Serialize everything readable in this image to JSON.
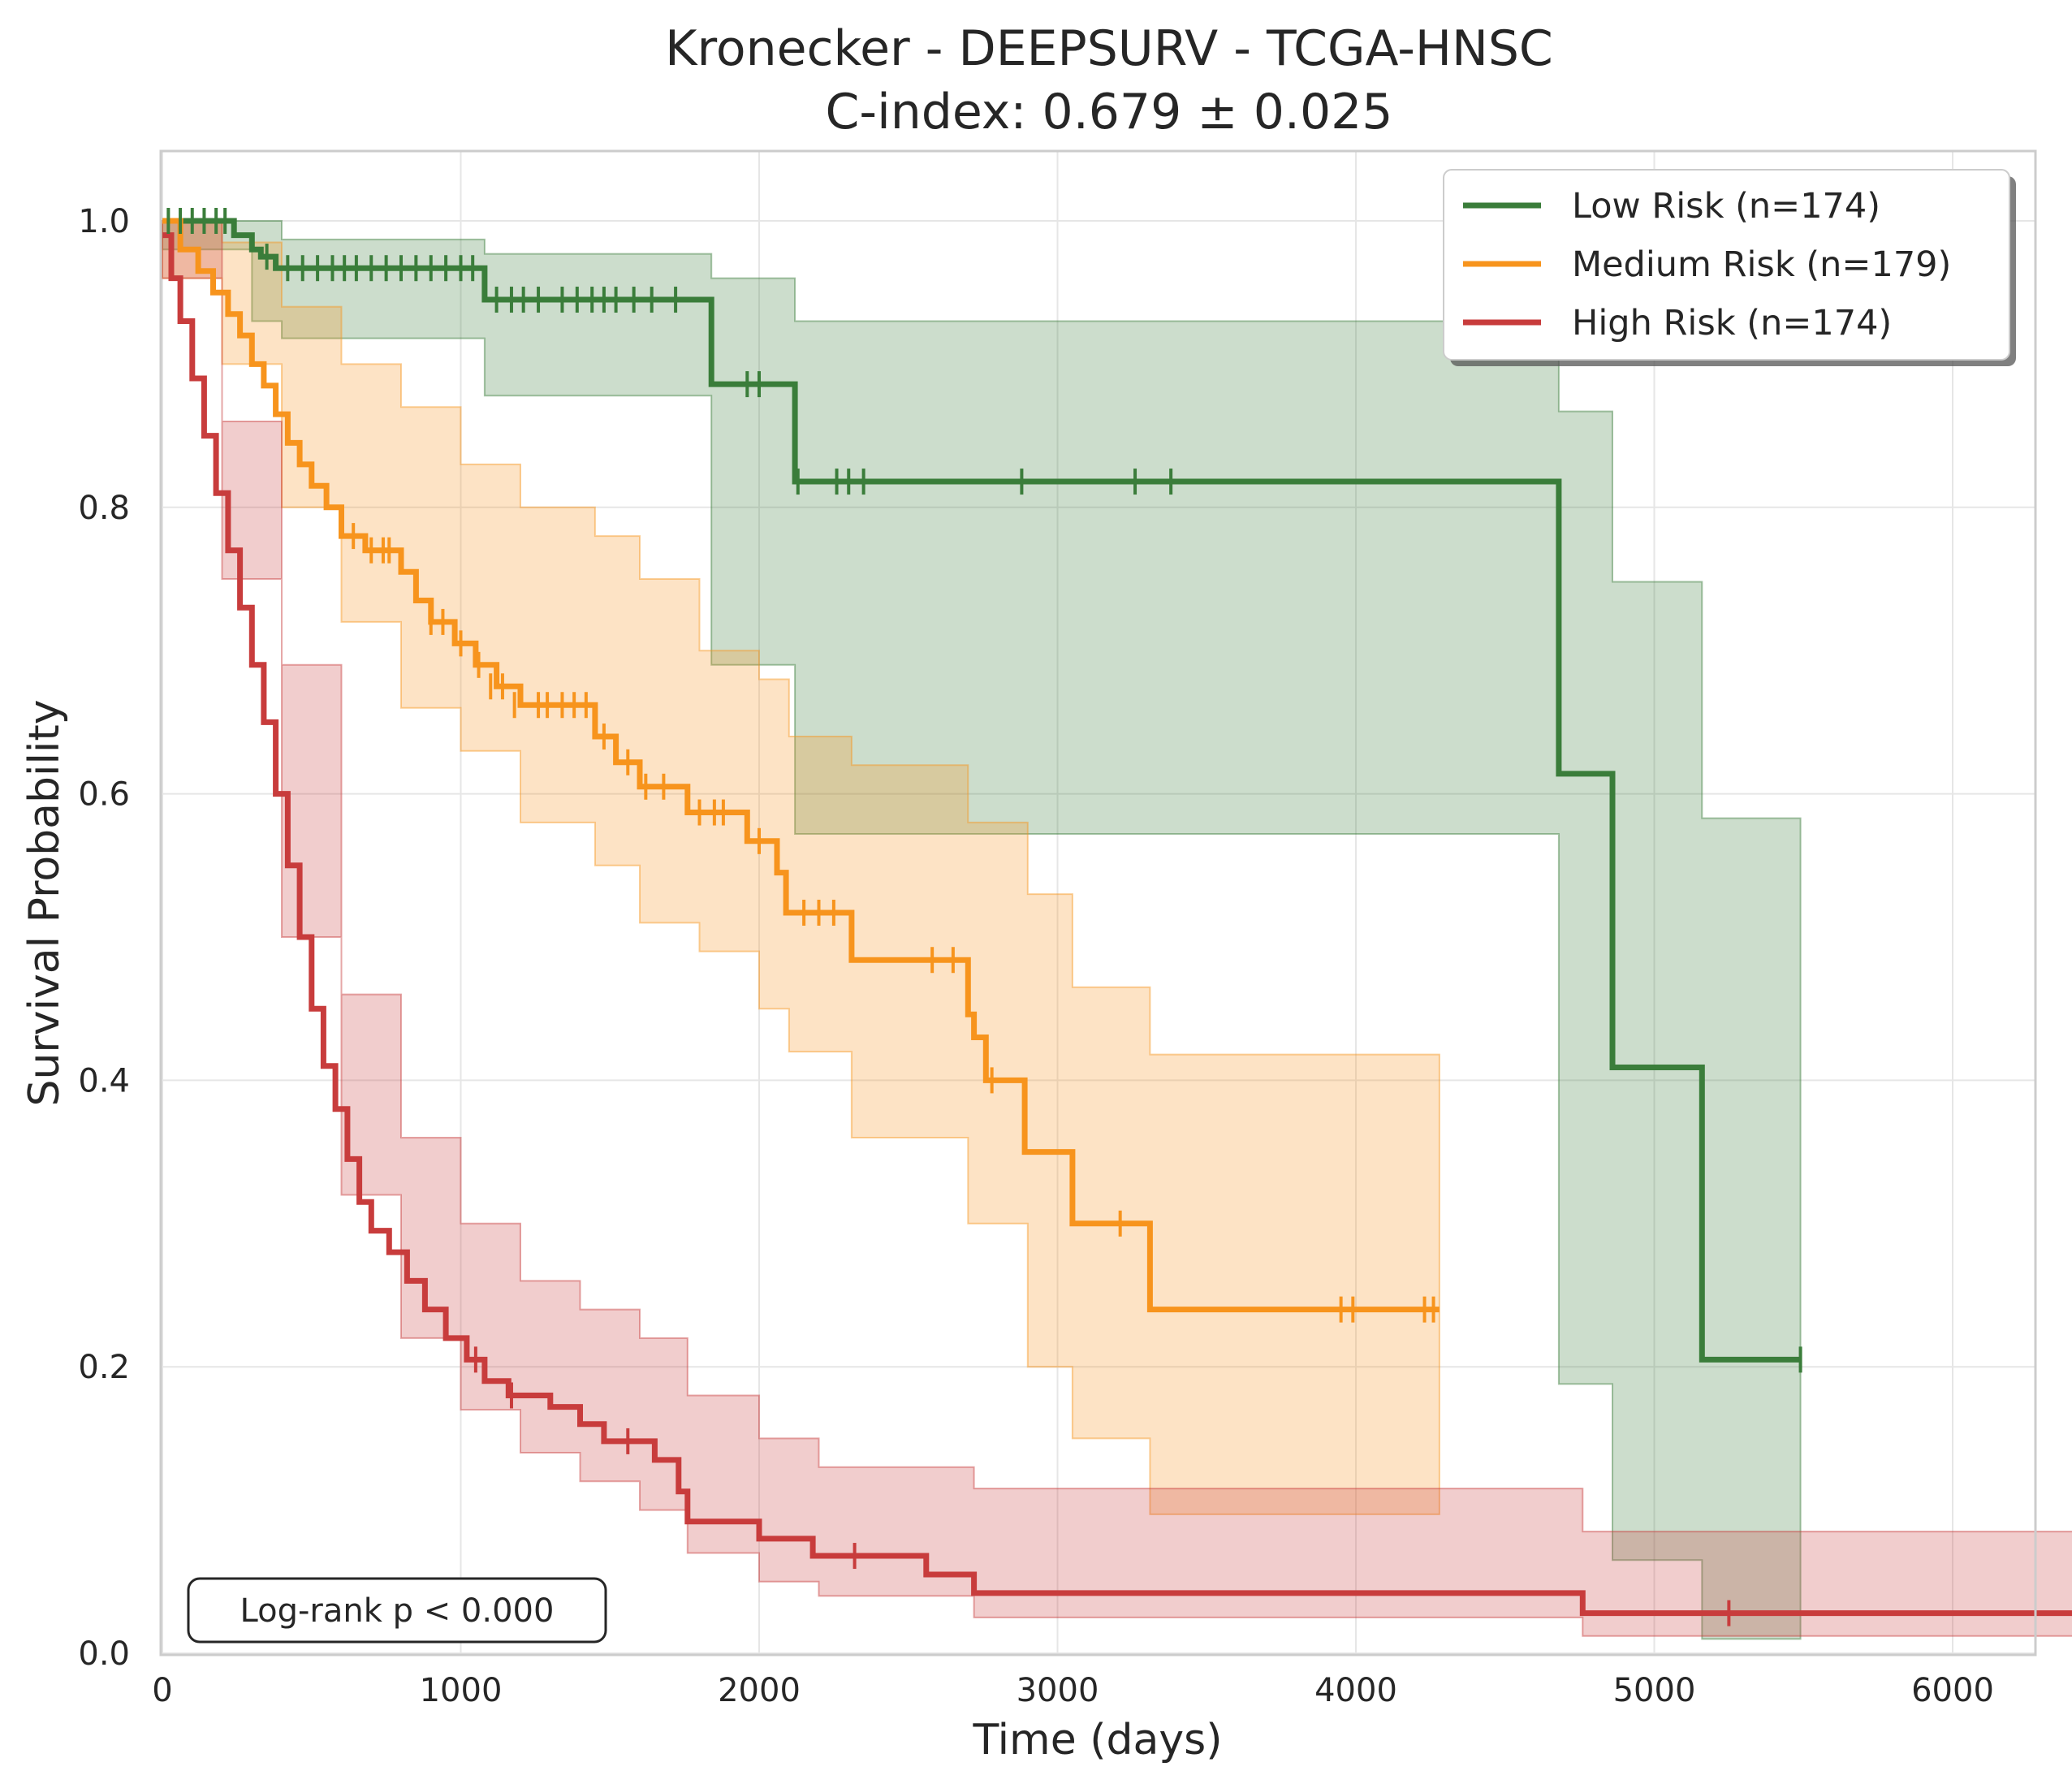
{
  "chart_data": {
    "type": "line",
    "title": "Kronecker - DEEPSURV - TCGA-HNSC",
    "subtitle": "C-index: 0.679 ± 0.025",
    "xlabel": "Time (days)",
    "ylabel": "Survival Probability",
    "xlim": [
      0,
      6700
    ],
    "ylim": [
      0,
      1.05
    ],
    "xticks": [
      "0",
      "1000",
      "2000",
      "3000",
      "4000",
      "5000",
      "6000"
    ],
    "yticks": [
      "0.0",
      "0.2",
      "0.4",
      "0.6",
      "0.8",
      "1.0"
    ],
    "grid": true,
    "legend_position": "top-right",
    "annotation": "Log-rank p < 0.000",
    "series": [
      {
        "name": "Low Risk (n=174)",
        "color": "#3a7d3a",
        "steps": [
          [
            0,
            1.0
          ],
          [
            240,
            0.99
          ],
          [
            300,
            0.98
          ],
          [
            330,
            0.975
          ],
          [
            380,
            0.967
          ],
          [
            1080,
            0.945
          ],
          [
            1840,
            0.886
          ],
          [
            2120,
            0.818
          ],
          [
            4680,
            0.614
          ],
          [
            4860,
            0.409
          ],
          [
            5160,
            0.205
          ],
          [
            5490,
            0.205
          ]
        ],
        "ci_upper": [
          [
            0,
            1.0
          ],
          [
            400,
            0.987
          ],
          [
            1080,
            0.977
          ],
          [
            1840,
            0.96
          ],
          [
            2120,
            0.93
          ],
          [
            4680,
            0.867
          ],
          [
            4860,
            0.748
          ],
          [
            5160,
            0.583
          ],
          [
            5490,
            0.583
          ]
        ],
        "ci_lower": [
          [
            0,
            0.98
          ],
          [
            300,
            0.93
          ],
          [
            400,
            0.918
          ],
          [
            1080,
            0.878
          ],
          [
            1840,
            0.69
          ],
          [
            2120,
            0.572
          ],
          [
            4680,
            0.188
          ],
          [
            4860,
            0.065
          ],
          [
            5160,
            0.01
          ],
          [
            5490,
            0.01
          ]
        ],
        "censors": [
          [
            20,
            1.0
          ],
          [
            60,
            1.0
          ],
          [
            100,
            1.0
          ],
          [
            140,
            1.0
          ],
          [
            180,
            1.0
          ],
          [
            210,
            1.0
          ],
          [
            350,
            0.975
          ],
          [
            420,
            0.967
          ],
          [
            470,
            0.967
          ],
          [
            520,
            0.967
          ],
          [
            570,
            0.967
          ],
          [
            610,
            0.967
          ],
          [
            650,
            0.967
          ],
          [
            700,
            0.967
          ],
          [
            750,
            0.967
          ],
          [
            800,
            0.967
          ],
          [
            850,
            0.967
          ],
          [
            900,
            0.967
          ],
          [
            950,
            0.967
          ],
          [
            1000,
            0.967
          ],
          [
            1040,
            0.967
          ],
          [
            1120,
            0.945
          ],
          [
            1170,
            0.945
          ],
          [
            1210,
            0.945
          ],
          [
            1260,
            0.945
          ],
          [
            1340,
            0.945
          ],
          [
            1390,
            0.945
          ],
          [
            1440,
            0.945
          ],
          [
            1480,
            0.945
          ],
          [
            1520,
            0.945
          ],
          [
            1580,
            0.945
          ],
          [
            1640,
            0.945
          ],
          [
            1720,
            0.945
          ],
          [
            1960,
            0.886
          ],
          [
            2000,
            0.886
          ],
          [
            2130,
            0.818
          ],
          [
            2260,
            0.818
          ],
          [
            2300,
            0.818
          ],
          [
            2350,
            0.818
          ],
          [
            2880,
            0.818
          ],
          [
            3260,
            0.818
          ],
          [
            3380,
            0.818
          ],
          [
            5490,
            0.205
          ]
        ]
      },
      {
        "name": "Medium Risk (n=179)",
        "color": "#f7941d",
        "steps": [
          [
            0,
            1.0
          ],
          [
            60,
            0.98
          ],
          [
            120,
            0.965
          ],
          [
            170,
            0.95
          ],
          [
            220,
            0.935
          ],
          [
            260,
            0.92
          ],
          [
            300,
            0.9
          ],
          [
            340,
            0.885
          ],
          [
            380,
            0.865
          ],
          [
            420,
            0.845
          ],
          [
            460,
            0.83
          ],
          [
            500,
            0.815
          ],
          [
            550,
            0.8
          ],
          [
            600,
            0.78
          ],
          [
            680,
            0.77
          ],
          [
            800,
            0.755
          ],
          [
            850,
            0.735
          ],
          [
            900,
            0.72
          ],
          [
            980,
            0.705
          ],
          [
            1050,
            0.69
          ],
          [
            1120,
            0.675
          ],
          [
            1200,
            0.662
          ],
          [
            1450,
            0.64
          ],
          [
            1520,
            0.622
          ],
          [
            1600,
            0.605
          ],
          [
            1760,
            0.587
          ],
          [
            1960,
            0.567
          ],
          [
            2060,
            0.545
          ],
          [
            2090,
            0.517
          ],
          [
            2310,
            0.484
          ],
          [
            2700,
            0.446
          ],
          [
            2720,
            0.43
          ],
          [
            2760,
            0.4
          ],
          [
            2890,
            0.35
          ],
          [
            3050,
            0.3
          ],
          [
            3310,
            0.24
          ],
          [
            4280,
            0.24
          ]
        ],
        "ci_upper": [
          [
            0,
            1.0
          ],
          [
            200,
            0.985
          ],
          [
            400,
            0.94
          ],
          [
            600,
            0.9
          ],
          [
            800,
            0.87
          ],
          [
            1000,
            0.83
          ],
          [
            1200,
            0.8
          ],
          [
            1450,
            0.78
          ],
          [
            1600,
            0.75
          ],
          [
            1800,
            0.7
          ],
          [
            2000,
            0.68
          ],
          [
            2100,
            0.64
          ],
          [
            2310,
            0.62
          ],
          [
            2700,
            0.58
          ],
          [
            2900,
            0.53
          ],
          [
            3050,
            0.465
          ],
          [
            3310,
            0.418
          ],
          [
            4280,
            0.418
          ]
        ],
        "ci_lower": [
          [
            0,
            0.96
          ],
          [
            200,
            0.9
          ],
          [
            400,
            0.8
          ],
          [
            600,
            0.72
          ],
          [
            800,
            0.66
          ],
          [
            1000,
            0.63
          ],
          [
            1200,
            0.58
          ],
          [
            1450,
            0.55
          ],
          [
            1600,
            0.51
          ],
          [
            1800,
            0.49
          ],
          [
            2000,
            0.45
          ],
          [
            2100,
            0.42
          ],
          [
            2310,
            0.36
          ],
          [
            2700,
            0.3
          ],
          [
            2900,
            0.2
          ],
          [
            3050,
            0.15
          ],
          [
            3310,
            0.097
          ],
          [
            4280,
            0.097
          ]
        ],
        "censors": [
          [
            640,
            0.78
          ],
          [
            700,
            0.77
          ],
          [
            740,
            0.77
          ],
          [
            760,
            0.77
          ],
          [
            900,
            0.72
          ],
          [
            940,
            0.72
          ],
          [
            1000,
            0.705
          ],
          [
            1060,
            0.69
          ],
          [
            1100,
            0.675
          ],
          [
            1140,
            0.675
          ],
          [
            1180,
            0.662
          ],
          [
            1260,
            0.662
          ],
          [
            1290,
            0.662
          ],
          [
            1340,
            0.662
          ],
          [
            1380,
            0.662
          ],
          [
            1420,
            0.662
          ],
          [
            1480,
            0.64
          ],
          [
            1560,
            0.622
          ],
          [
            1620,
            0.605
          ],
          [
            1680,
            0.605
          ],
          [
            1800,
            0.587
          ],
          [
            1850,
            0.587
          ],
          [
            1880,
            0.587
          ],
          [
            2000,
            0.567
          ],
          [
            2150,
            0.517
          ],
          [
            2200,
            0.517
          ],
          [
            2250,
            0.517
          ],
          [
            2580,
            0.484
          ],
          [
            2650,
            0.484
          ],
          [
            2780,
            0.4
          ],
          [
            3210,
            0.3
          ],
          [
            3950,
            0.24
          ],
          [
            3990,
            0.24
          ],
          [
            4230,
            0.24
          ],
          [
            4260,
            0.24
          ]
        ]
      },
      {
        "name": "High Risk (n=174)",
        "color": "#c83c3c",
        "steps": [
          [
            0,
            0.99
          ],
          [
            30,
            0.96
          ],
          [
            60,
            0.93
          ],
          [
            100,
            0.89
          ],
          [
            140,
            0.85
          ],
          [
            180,
            0.81
          ],
          [
            220,
            0.77
          ],
          [
            260,
            0.73
          ],
          [
            300,
            0.69
          ],
          [
            340,
            0.65
          ],
          [
            380,
            0.6
          ],
          [
            420,
            0.55
          ],
          [
            460,
            0.5
          ],
          [
            500,
            0.45
          ],
          [
            540,
            0.41
          ],
          [
            580,
            0.38
          ],
          [
            620,
            0.345
          ],
          [
            660,
            0.315
          ],
          [
            700,
            0.295
          ],
          [
            760,
            0.28
          ],
          [
            820,
            0.26
          ],
          [
            880,
            0.24
          ],
          [
            950,
            0.22
          ],
          [
            1020,
            0.205
          ],
          [
            1080,
            0.19
          ],
          [
            1160,
            0.18
          ],
          [
            1300,
            0.172
          ],
          [
            1400,
            0.16
          ],
          [
            1480,
            0.148
          ],
          [
            1650,
            0.135
          ],
          [
            1730,
            0.113
          ],
          [
            1760,
            0.092
          ],
          [
            2000,
            0.08
          ],
          [
            2180,
            0.068
          ],
          [
            2560,
            0.055
          ],
          [
            2720,
            0.042
          ],
          [
            4760,
            0.028
          ],
          [
            6420,
            0.028
          ],
          [
            6420,
            0.0
          ]
        ],
        "ci_upper": [
          [
            0,
            1.0
          ],
          [
            200,
            0.86
          ],
          [
            400,
            0.69
          ],
          [
            600,
            0.46
          ],
          [
            800,
            0.36
          ],
          [
            1000,
            0.3
          ],
          [
            1200,
            0.26
          ],
          [
            1400,
            0.24
          ],
          [
            1600,
            0.22
          ],
          [
            1760,
            0.18
          ],
          [
            2000,
            0.15
          ],
          [
            2200,
            0.13
          ],
          [
            2720,
            0.115
          ],
          [
            4760,
            0.085
          ],
          [
            6420,
            0.082
          ]
        ],
        "ci_lower": [
          [
            0,
            0.96
          ],
          [
            200,
            0.75
          ],
          [
            400,
            0.5
          ],
          [
            600,
            0.32
          ],
          [
            800,
            0.22
          ],
          [
            1000,
            0.17
          ],
          [
            1200,
            0.14
          ],
          [
            1400,
            0.12
          ],
          [
            1600,
            0.1
          ],
          [
            1760,
            0.07
          ],
          [
            2000,
            0.05
          ],
          [
            2200,
            0.04
          ],
          [
            2720,
            0.025
          ],
          [
            4760,
            0.012
          ],
          [
            6420,
            0.012
          ]
        ],
        "censors": [
          [
            1050,
            0.205
          ],
          [
            1170,
            0.18
          ],
          [
            1560,
            0.148
          ],
          [
            2320,
            0.068
          ],
          [
            5250,
            0.028
          ]
        ]
      }
    ]
  }
}
